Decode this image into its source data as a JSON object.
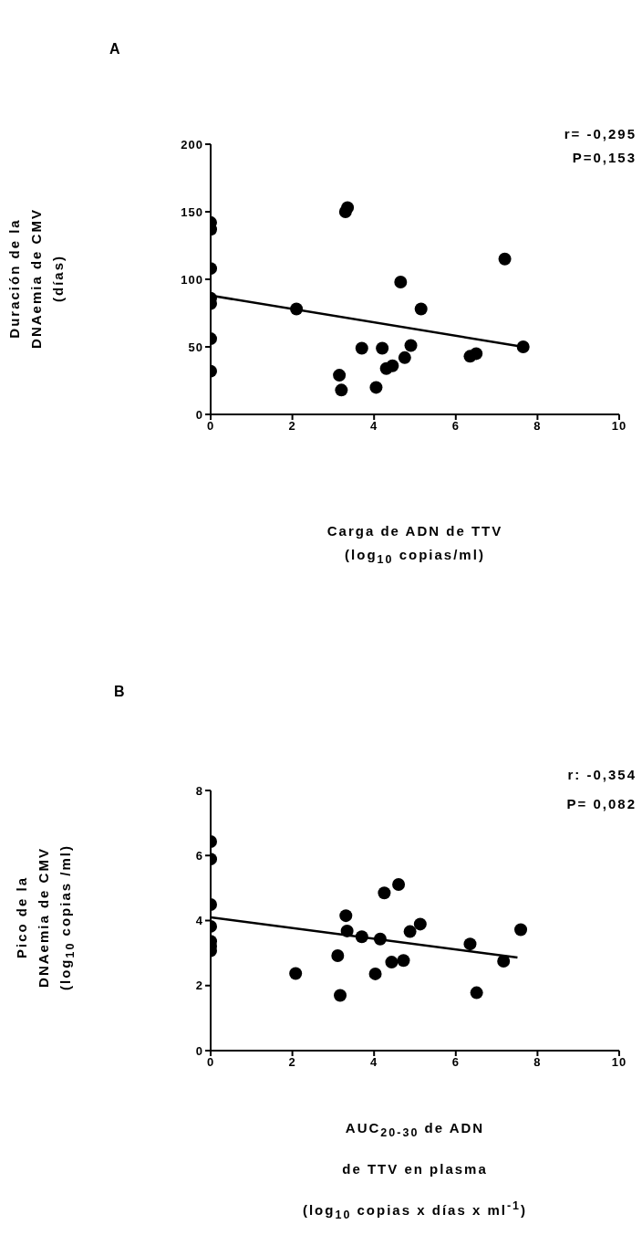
{
  "chart_data": [
    {
      "type": "scatter",
      "title": "A",
      "xlabel": "Carga de ADN de TTV\n(log$_{10}$ copias/ml)",
      "ylabel": "Duración de la\nDNAemia de CMV\n(días)",
      "annotations": [
        "r= -0,295",
        "P=0,153"
      ],
      "xlim": [
        0,
        10
      ],
      "xticks": [
        0,
        2,
        4,
        6,
        8,
        10
      ],
      "ylim": [
        0,
        200
      ],
      "yticks": [
        0,
        50,
        100,
        150,
        200
      ],
      "series": [
        {
          "marker": "circle",
          "color": "#000000",
          "x": [
            0,
            0,
            0,
            0,
            0,
            0,
            0,
            2.1,
            3.15,
            3.2,
            3.3,
            3.35,
            3.7,
            4.05,
            4.2,
            4.3,
            4.45,
            4.65,
            4.75,
            4.9,
            5.15,
            6.35,
            6.5,
            7.2,
            7.65
          ],
          "values": [
            142,
            137,
            108,
            86,
            82,
            56,
            32,
            78,
            29,
            18,
            150,
            153,
            49,
            20,
            49,
            34,
            36,
            98,
            42,
            51,
            78,
            43,
            45,
            115,
            50
          ]
        },
        {
          "type": "line",
          "color": "#000000",
          "x": [
            0,
            7.65
          ],
          "values": [
            88,
            50
          ]
        }
      ]
    },
    {
      "type": "scatter",
      "title": "B",
      "xlabel": "AUC$_{20-30}$ de ADN\nde TTV en plasma\n(log$_{10}$ copias x días x ml$^{-1}$)",
      "ylabel": "Pico de la\nDNAemia de CMV\n(log$_{10}$ copias /ml)",
      "annotations": [
        "r: -0,354",
        "P= 0,082"
      ],
      "xlim": [
        0,
        10
      ],
      "xticks": [
        0,
        2,
        4,
        6,
        8,
        10
      ],
      "ylim": [
        0,
        8
      ],
      "yticks": [
        0,
        2,
        4,
        6,
        8
      ],
      "series": [
        {
          "marker": "circle",
          "color": "#000000",
          "x": [
            0,
            0,
            0,
            0,
            0,
            0,
            0,
            2.08,
            3.11,
            3.17,
            3.31,
            3.34,
            3.7,
            4.03,
            4.15,
            4.25,
            4.43,
            4.6,
            4.72,
            4.88,
            5.13,
            6.35,
            6.51,
            7.17,
            7.59
          ],
          "values": [
            6.43,
            5.89,
            4.49,
            3.82,
            3.36,
            3.21,
            3.07,
            2.37,
            2.92,
            1.7,
            4.15,
            3.68,
            3.5,
            2.36,
            3.43,
            4.85,
            2.72,
            5.11,
            2.77,
            3.66,
            3.89,
            3.28,
            1.78,
            2.75,
            3.72
          ]
        },
        {
          "type": "line",
          "color": "#000000",
          "x": [
            0,
            7.51
          ],
          "values": [
            4.1,
            2.86
          ]
        }
      ]
    }
  ]
}
